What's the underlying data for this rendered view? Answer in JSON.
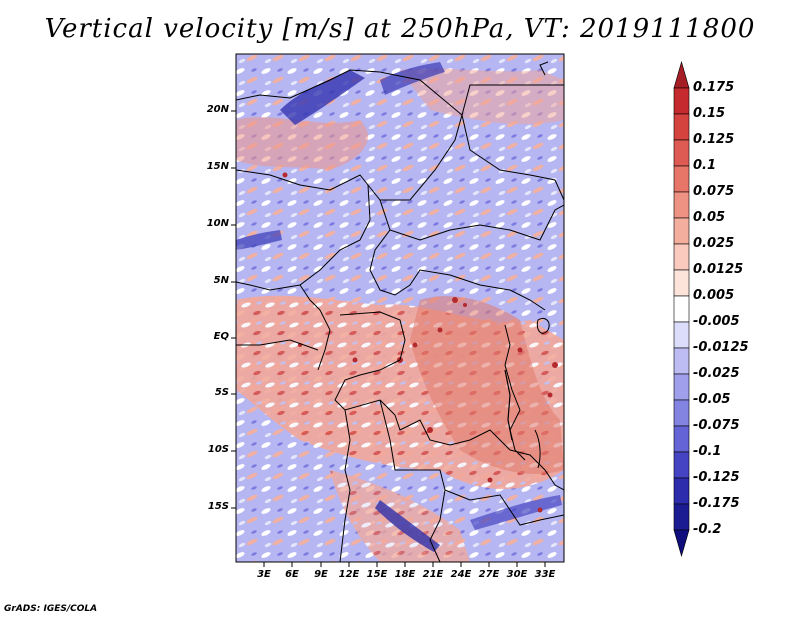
{
  "title": "Vertical velocity [m/s] at 250hPa, VT: 2019111800",
  "credit": "GrADS: IGES/COLA",
  "map": {
    "lat_labels": [
      "20N",
      "15N",
      "10N",
      "5N",
      "EQ",
      "5S",
      "10S",
      "15S"
    ],
    "lon_labels": [
      "3E",
      "6E",
      "9E",
      "12E",
      "15E",
      "18E",
      "21E",
      "24E",
      "27E",
      "30E",
      "33E"
    ],
    "field": "vertical velocity",
    "colormap": "blue-white-red diverging"
  },
  "colorbar": {
    "labels": [
      "0.175",
      "0.15",
      "0.125",
      "0.1",
      "0.075",
      "0.05",
      "0.025",
      "0.0125",
      "0.005",
      "-0.005",
      "-0.0125",
      "-0.025",
      "-0.05",
      "-0.075",
      "-0.1",
      "-0.125",
      "-0.175",
      "-0.2"
    ],
    "colors": [
      "#a51d25",
      "#c52a2f",
      "#d5433f",
      "#de5b53",
      "#e77668",
      "#ee9283",
      "#f4ae9e",
      "#f9cabd",
      "#fde4db",
      "#ffffff",
      "#dcdcfb",
      "#bdbdf4",
      "#9f9fec",
      "#8383e2",
      "#6464d6",
      "#4545c3",
      "#2c2cad",
      "#1c1c92",
      "#100d7c"
    ]
  }
}
